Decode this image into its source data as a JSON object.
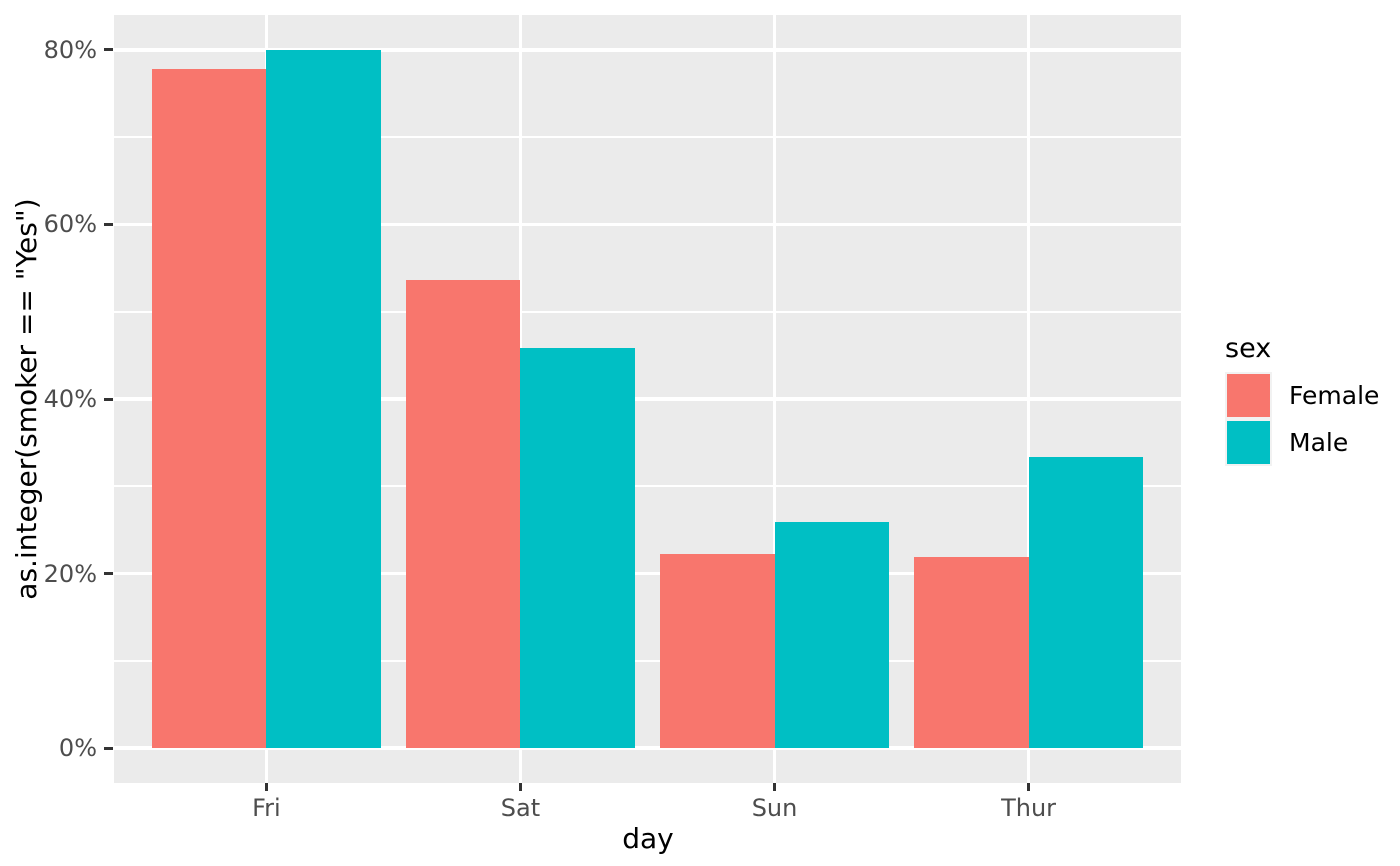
{
  "chart_data": {
    "type": "bar",
    "title": "",
    "xlabel": "day",
    "ylabel": "as.integer(smoker == \"Yes\")",
    "categories": [
      "Fri",
      "Sat",
      "Sun",
      "Thur"
    ],
    "series": [
      {
        "name": "Female",
        "color": "#F8766D",
        "values": [
          77.8,
          53.6,
          22.2,
          21.9
        ]
      },
      {
        "name": "Male",
        "color": "#00BFC4",
        "values": [
          80.0,
          45.8,
          25.9,
          33.3
        ]
      }
    ],
    "y_ticks": [
      {
        "label": "0%",
        "value": 0
      },
      {
        "label": "20%",
        "value": 20
      },
      {
        "label": "40%",
        "value": 40
      },
      {
        "label": "60%",
        "value": 60
      },
      {
        "label": "80%",
        "value": 80
      }
    ],
    "y_minor_ticks": [
      10,
      30,
      50,
      70
    ],
    "ylim": [
      -4,
      84
    ],
    "legend_title": "sex",
    "legend_position": "right",
    "grid": true,
    "bar_layout": "dodge"
  },
  "style": {
    "panel_background": "#EBEBEB",
    "grid_color": "#FFFFFF",
    "tick_text_color": "#4D4D4D",
    "axis_title_color": "#000000",
    "tick_mark_color": "#333333",
    "legend_key_background": "#F2F2F2",
    "figure_background": "#FFFFFF"
  }
}
